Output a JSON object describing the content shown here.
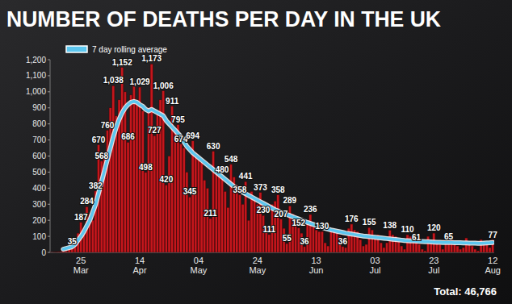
{
  "chart_data": {
    "type": "bar",
    "title": "NUMBER OF DEATHS PER DAY IN THE UK",
    "annotations": [
      "Total: 46,766"
    ],
    "categories": [
      null,
      null,
      null,
      null,
      null,
      null,
      null,
      null,
      null,
      null,
      "25 Mar",
      null,
      null,
      null,
      null,
      null,
      null,
      null,
      null,
      null,
      null,
      null,
      null,
      null,
      null,
      null,
      null,
      null,
      null,
      null,
      "14 Apr",
      null,
      null,
      null,
      null,
      null,
      null,
      null,
      null,
      null,
      null,
      null,
      null,
      null,
      null,
      null,
      null,
      null,
      null,
      null,
      "04 May",
      null,
      null,
      null,
      null,
      null,
      null,
      null,
      null,
      null,
      null,
      null,
      null,
      null,
      null,
      null,
      null,
      null,
      null,
      null,
      "24 May",
      null,
      null,
      null,
      null,
      null,
      null,
      null,
      null,
      null,
      null,
      null,
      null,
      null,
      null,
      null,
      null,
      null,
      null,
      null,
      "13 Jun",
      null,
      null,
      null,
      null,
      null,
      null,
      null,
      null,
      null,
      null,
      null,
      null,
      null,
      null,
      null,
      null,
      null,
      null,
      null,
      "03 Jul",
      null,
      null,
      null,
      null,
      null,
      null,
      null,
      null,
      null,
      null,
      null,
      null,
      null,
      null,
      null,
      null,
      null,
      null,
      null,
      "23 Jul",
      null,
      null,
      null,
      null,
      null,
      null,
      null,
      null,
      null,
      null,
      null,
      null,
      null,
      null,
      null,
      null,
      null,
      null,
      null,
      "12 Aug"
    ],
    "series": [
      {
        "type": "bar",
        "color": "#c4161c",
        "data_labels": true,
        "values": [
          1,
          2,
          4,
          5,
          8,
          10,
          20,
          35,
          60,
          120,
          187,
          150,
          284,
          240,
          200,
          382,
          670,
          568,
          600,
          760,
          900,
          1038,
          850,
          950,
          1152,
          1000,
          686,
          980,
          1050,
          950,
          1029,
          880,
          498,
          900,
          1173,
          727,
          870,
          950,
          1006,
          420,
          600,
          911,
          760,
          795,
          674,
          650,
          500,
          345,
          694,
          620,
          580,
          560,
          450,
          400,
          211,
          630,
          520,
          500,
          480,
          380,
          280,
          548,
          470,
          420,
          358,
          300,
          441,
          200,
          380,
          330,
          300,
          373,
          230,
          160,
          111,
          300,
          320,
          358,
          207,
          150,
          55,
          289,
          240,
          200,
          152,
          120,
          36,
          180,
          236,
          160,
          140,
          130,
          130,
          60,
          40,
          140,
          130,
          120,
          100,
          36,
          30,
          150,
          176,
          140,
          130,
          80,
          40,
          50,
          155,
          140,
          100,
          110,
          60,
          30,
          60,
          138,
          110,
          100,
          70,
          40,
          20,
          110,
          100,
          90,
          61,
          50,
          20,
          10,
          100,
          80,
          120,
          70,
          50,
          20,
          70,
          65,
          80,
          50,
          40,
          20,
          30,
          90,
          60,
          40,
          20,
          10,
          80,
          70,
          60,
          30,
          77
        ],
        "value_labels": [
          null,
          null,
          null,
          null,
          null,
          null,
          null,
          "35",
          null,
          null,
          "187",
          null,
          "284",
          null,
          null,
          "382",
          "670",
          "568",
          null,
          "760",
          null,
          "1,038",
          null,
          null,
          "1,152",
          null,
          "686",
          null,
          null,
          null,
          "1,029",
          null,
          "498",
          null,
          "1,173",
          "727",
          null,
          null,
          "1,006",
          "420",
          null,
          "911",
          null,
          "795",
          "674",
          null,
          null,
          "345",
          "694",
          null,
          null,
          null,
          null,
          null,
          "211",
          "630",
          null,
          null,
          "480",
          null,
          null,
          "548",
          null,
          null,
          "358",
          null,
          "441",
          null,
          null,
          null,
          null,
          "373",
          "230",
          null,
          "111",
          null,
          null,
          "358",
          "207",
          null,
          "55",
          "289",
          null,
          null,
          "152",
          null,
          "36",
          null,
          "236",
          null,
          null,
          null,
          "130",
          null,
          null,
          null,
          null,
          null,
          null,
          "36",
          null,
          null,
          "176",
          null,
          null,
          null,
          null,
          null,
          "155",
          null,
          null,
          null,
          null,
          null,
          null,
          "138",
          null,
          null,
          null,
          null,
          null,
          "110",
          null,
          null,
          "61",
          null,
          null,
          null,
          null,
          null,
          "120",
          null,
          null,
          null,
          null,
          "65",
          null,
          null,
          null,
          null,
          null,
          null,
          null,
          null,
          null,
          null,
          null,
          null,
          null,
          null,
          "77"
        ]
      },
      {
        "name": "7 day rolling average",
        "type": "line",
        "color": "#5cc6ee",
        "values": [
          null,
          null,
          null,
          null,
          20,
          25,
          30,
          35,
          50,
          75,
          100,
          130,
          165,
          200,
          250,
          300,
          370,
          440,
          510,
          580,
          650,
          720,
          780,
          830,
          870,
          900,
          920,
          935,
          940,
          935,
          920,
          910,
          890,
          880,
          890,
          880,
          870,
          860,
          850,
          820,
          800,
          780,
          760,
          740,
          720,
          690,
          660,
          640,
          620,
          605,
          590,
          575,
          560,
          545,
          530,
          515,
          500,
          485,
          470,
          455,
          440,
          425,
          410,
          400,
          390,
          375,
          365,
          355,
          345,
          335,
          325,
          315,
          305,
          295,
          285,
          275,
          265,
          258,
          250,
          243,
          236,
          229,
          222,
          215,
          208,
          200,
          193,
          186,
          180,
          174,
          168,
          162,
          156,
          150,
          145,
          140,
          136,
          132,
          128,
          124,
          120,
          117,
          114,
          111,
          108,
          105,
          102,
          100,
          98,
          96,
          94,
          92,
          90,
          88,
          86,
          84,
          82,
          80,
          78,
          76,
          74,
          73,
          72,
          71,
          70,
          69,
          68,
          67,
          66,
          65,
          64,
          63,
          63,
          62,
          62,
          61,
          61,
          60,
          60,
          60,
          59,
          59,
          58,
          58,
          58,
          57,
          57,
          58,
          59,
          60,
          62
        ]
      }
    ],
    "ylim": [
      0,
      1200
    ],
    "yticks": [
      0,
      100,
      200,
      300,
      400,
      500,
      600,
      700,
      800,
      900,
      {
        "value": 1000,
        "label": "1,000"
      },
      {
        "value": 1100,
        "label": "1,100"
      },
      {
        "value": 1200,
        "label": "1,200"
      }
    ],
    "grid": false,
    "legend": "top-left"
  }
}
